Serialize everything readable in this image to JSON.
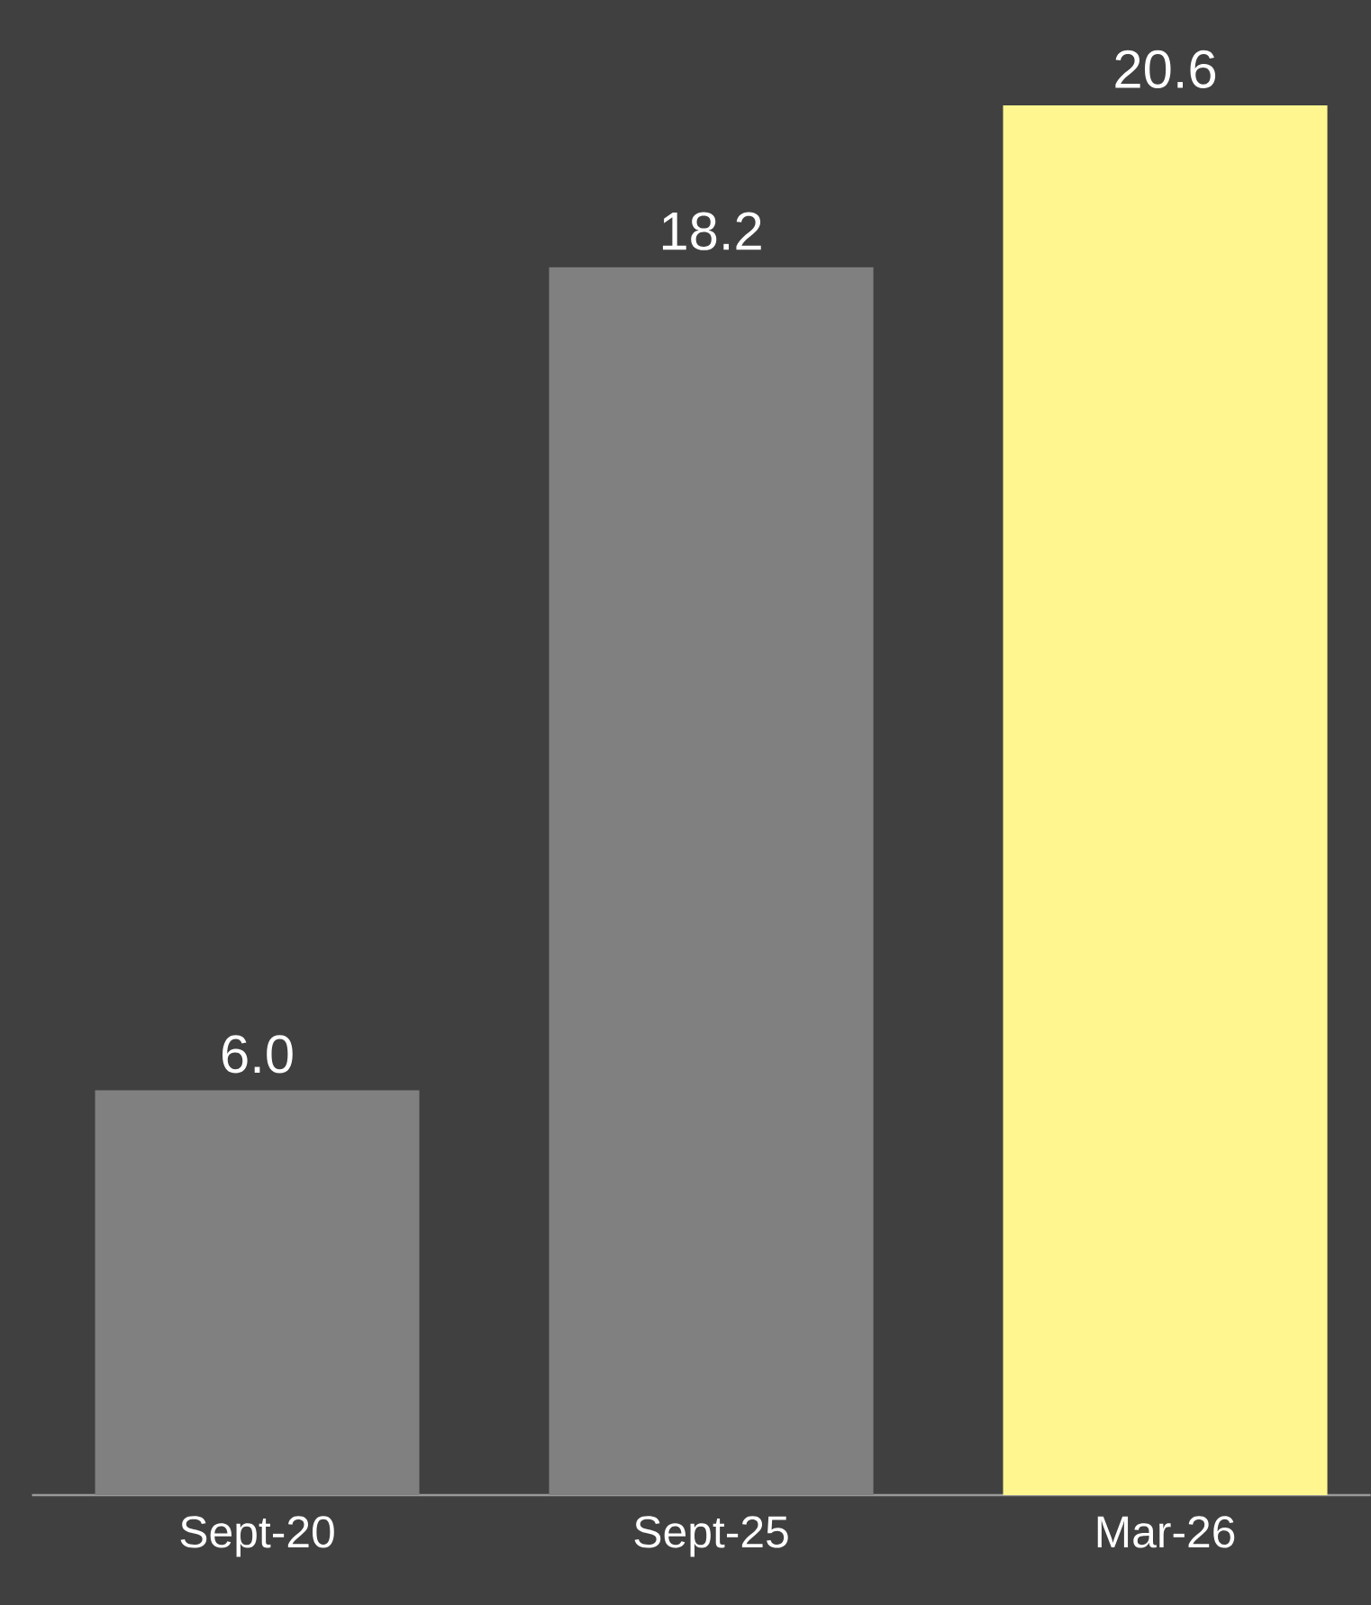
{
  "chart_data": {
    "type": "bar",
    "categories": [
      "Sept-20",
      "Sept-25",
      "Mar-26"
    ],
    "values": [
      6.0,
      18.2,
      20.6
    ],
    "value_labels": [
      "6.0",
      "18.2",
      "20.6"
    ],
    "colors": [
      "#808080",
      "#808080",
      "#fff68f"
    ]
  }
}
